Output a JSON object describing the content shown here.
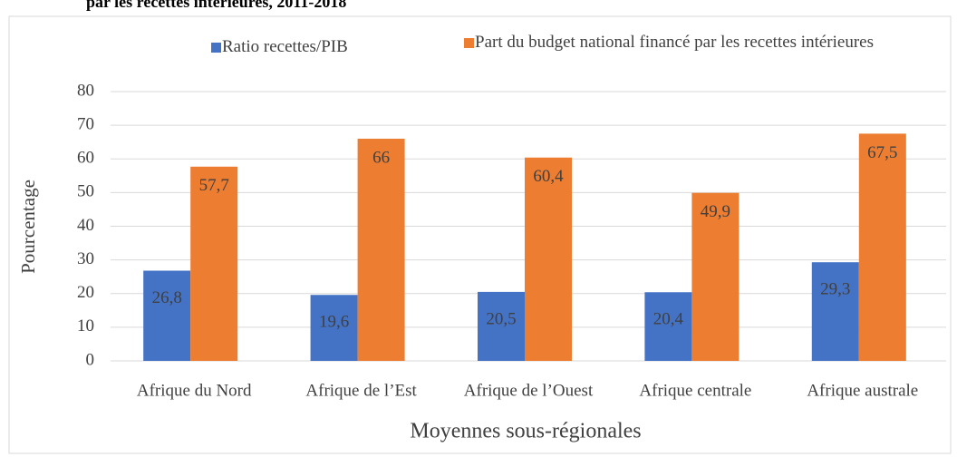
{
  "chart_data": {
    "type": "bar",
    "title": "par les recettes intérieures, 2011-2018",
    "categories": [
      "Afrique du Nord",
      "Afrique de l’Est",
      "Afrique de l’Ouest",
      "Afrique centrale",
      "Afrique australe"
    ],
    "series": [
      {
        "name": "Ratio recettes/PIB",
        "color": "#4472c4",
        "values": [
          26.8,
          19.6,
          20.5,
          20.4,
          29.3
        ],
        "value_labels": [
          "26,8",
          "19,6",
          "20,5",
          "20,4",
          "29,3"
        ]
      },
      {
        "name": "Part du budget national financé par les recettes intérieures",
        "color": "#ed7d31",
        "values": [
          57.7,
          66,
          60.4,
          49.9,
          67.5
        ],
        "value_labels": [
          "57,7",
          "66",
          "60,4",
          "49,9",
          "67,5"
        ]
      }
    ],
    "ylim": [
      0,
      80
    ],
    "yticks": [
      0,
      10,
      20,
      30,
      40,
      50,
      60,
      70,
      80
    ],
    "grid": true,
    "ylabel": "Pourcentage",
    "xlabel": "Moyennes sous-régionales",
    "legend": "top"
  }
}
